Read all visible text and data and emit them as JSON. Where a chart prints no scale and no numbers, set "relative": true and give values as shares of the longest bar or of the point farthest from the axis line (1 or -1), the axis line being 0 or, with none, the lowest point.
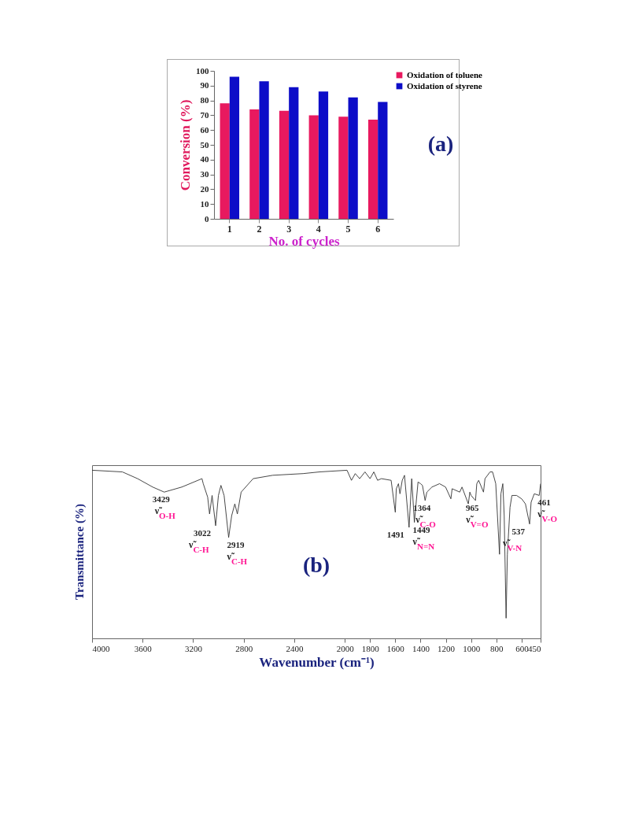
{
  "chart_data": [
    {
      "type": "bar",
      "categories": [
        "1",
        "2",
        "3",
        "4",
        "5",
        "6"
      ],
      "xlabel": "No. of cycles",
      "ylabel": "Conversion (%)",
      "ylim": [
        0,
        100
      ],
      "yticks": [
        0,
        10,
        20,
        30,
        40,
        50,
        60,
        70,
        80,
        90,
        100
      ],
      "legend": "top right",
      "annotations": [
        "(a)"
      ],
      "series": [
        {
          "name": "Oxidation of toluene",
          "color": "#e8195f",
          "values": [
            78,
            74,
            73,
            70,
            69,
            67
          ]
        },
        {
          "name": "Oxidation of styrene",
          "color": "#0d0dc8",
          "values": [
            96,
            93,
            89,
            86,
            82,
            79
          ]
        }
      ]
    },
    {
      "type": "line",
      "relative": true,
      "xlabel": "Wavenumber (cm⁻¹)",
      "ylabel": "Transmittance (%)",
      "xlim": [
        4000,
        450
      ],
      "xticks": [
        4000,
        3600,
        3200,
        2800,
        2400,
        2000,
        1800,
        1600,
        1400,
        1200,
        1000,
        800,
        600,
        450
      ],
      "tick_labels": "x",
      "annotations": [
        {
          "text": "3429\nν̃$_{O-H}$",
          "x": 3429,
          "y": 0.87
        },
        {
          "text": "3022\nν̃$_{C-H}$",
          "x": 3022,
          "y": 0.67
        },
        {
          "text": "2919\nν̃$_{C-H}$",
          "x": 2919,
          "y": 0.6
        },
        {
          "text": "1491",
          "x": 1491,
          "y": 0.66
        },
        {
          "text": "1449\nν̃$_{N=N}$",
          "x": 1449,
          "y": 0.69
        },
        {
          "text": "1364\nν̃$_{C-O}$",
          "x": 1364,
          "y": 0.82
        },
        {
          "text": "965\nν̃$_{V=O}$",
          "x": 965,
          "y": 0.82
        },
        {
          "text": "537\nν̃$_{V-N}$",
          "x": 537,
          "y": 0.68
        },
        {
          "text": "461\nν̃$_{V-O}$",
          "x": 461,
          "y": 0.85
        },
        "(b)"
      ],
      "series": [
        {
          "color": "#333333",
          "x": [
            4000,
            3760,
            3640,
            3520,
            3429,
            3290,
            3130,
            3120,
            3085,
            3070,
            3050,
            3022,
            3000,
            2980,
            2955,
            2919,
            2895,
            2870,
            2850,
            2820,
            2725,
            2570,
            2330,
            2200,
            1982,
            1947,
            1917,
            1882,
            1840,
            1800,
            1770,
            1740,
            1710,
            1633,
            1600,
            1592,
            1575,
            1563,
            1545,
            1527,
            1491,
            1470,
            1449,
            1420,
            1400,
            1385,
            1364,
            1350,
            1310,
            1250,
            1202,
            1160,
            1150,
            1090,
            1072,
            1022,
            1010,
            1000,
            965,
            955,
            940,
            902,
            890,
            850,
            830,
            805,
            775,
            764,
            749,
            738,
            723,
            713,
            692,
            677,
            640,
            600,
            570,
            537,
            525,
            500,
            461,
            450
          ],
          "values": [
            1.0,
            0.99,
            0.95,
            0.9,
            0.87,
            0.9,
            0.95,
            0.92,
            0.84,
            0.74,
            0.85,
            0.67,
            0.85,
            0.91,
            0.85,
            0.6,
            0.73,
            0.8,
            0.74,
            0.87,
            0.95,
            0.97,
            0.98,
            0.99,
            1.0,
            0.94,
            0.98,
            0.95,
            0.99,
            0.95,
            0.99,
            0.94,
            0.95,
            0.94,
            0.75,
            0.89,
            0.92,
            0.86,
            0.94,
            0.97,
            0.66,
            0.95,
            0.69,
            0.93,
            0.92,
            0.91,
            0.82,
            0.87,
            0.9,
            0.92,
            0.9,
            0.83,
            0.89,
            0.87,
            0.9,
            0.8,
            0.87,
            0.85,
            0.82,
            0.92,
            0.94,
            0.87,
            0.95,
            0.99,
            0.99,
            0.92,
            0.5,
            0.86,
            0.92,
            0.73,
            0.12,
            0.5,
            0.78,
            0.85,
            0.85,
            0.83,
            0.8,
            0.68,
            0.81,
            0.86,
            0.85,
            0.92
          ]
        }
      ]
    }
  ]
}
